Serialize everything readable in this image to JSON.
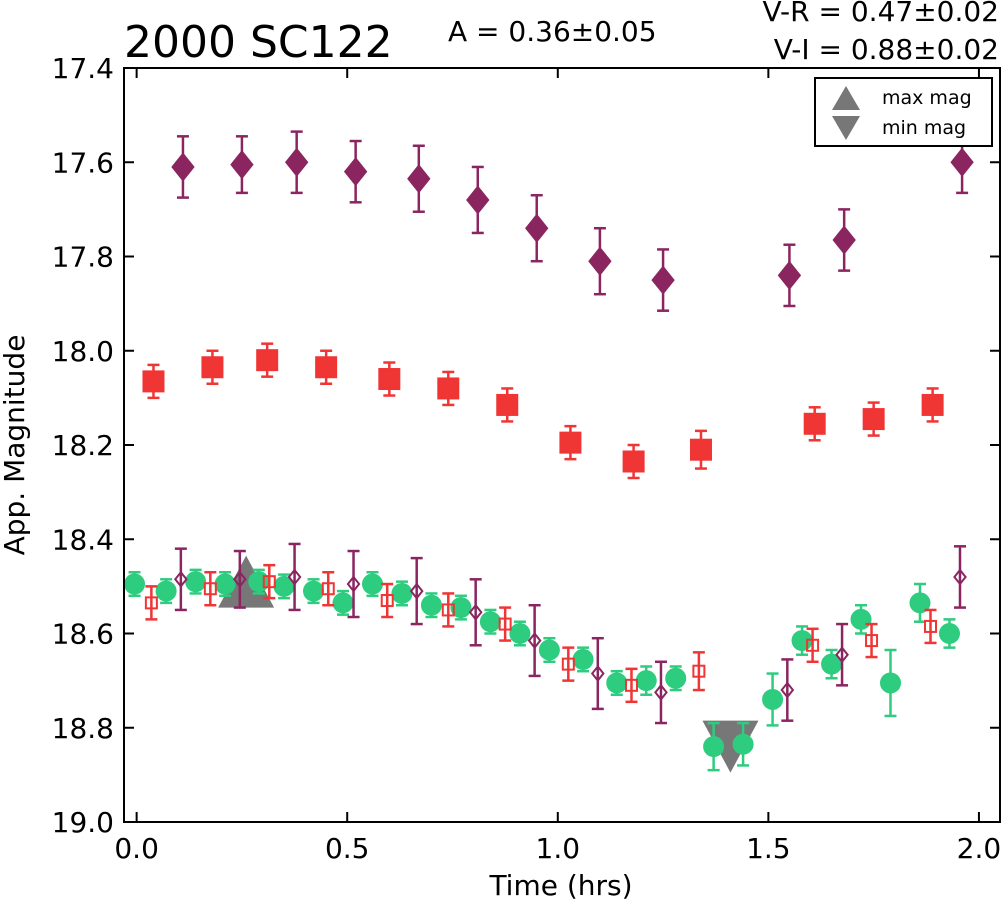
{
  "header": {
    "title": "2000 SC122",
    "amplitude": "A  = 0.36±0.05",
    "v_r": "V-R = 0.47±0.02",
    "v_i": "V-I  = 0.88±0.02"
  },
  "legend": {
    "max_label": "max mag",
    "min_label": "min mag",
    "position": "top-right"
  },
  "chart_data": {
    "type": "scatter",
    "xlabel": "Time (hrs)",
    "ylabel": "App. Magnitude",
    "xlim": [
      -0.03,
      2.05
    ],
    "ylim": [
      19.0,
      17.4
    ],
    "y_inverted": true,
    "grid": false,
    "x_ticks": [
      "0.0",
      "0.5",
      "1.0",
      "1.5",
      "2.0"
    ],
    "y_ticks": [
      "17.4",
      "17.6",
      "17.8",
      "18.0",
      "18.2",
      "18.4",
      "18.6",
      "18.8",
      "19.0"
    ],
    "series": [
      {
        "marker": "diamond",
        "filled": true,
        "color": "#8b2560",
        "points": [
          {
            "x": 0.11,
            "y": 17.61,
            "err": 0.065
          },
          {
            "x": 0.25,
            "y": 17.605,
            "err": 0.06
          },
          {
            "x": 0.38,
            "y": 17.6,
            "err": 0.065
          },
          {
            "x": 0.52,
            "y": 17.62,
            "err": 0.065
          },
          {
            "x": 0.67,
            "y": 17.635,
            "err": 0.07
          },
          {
            "x": 0.81,
            "y": 17.68,
            "err": 0.07
          },
          {
            "x": 0.95,
            "y": 17.74,
            "err": 0.07
          },
          {
            "x": 1.1,
            "y": 17.81,
            "err": 0.07
          },
          {
            "x": 1.25,
            "y": 17.85,
            "err": 0.065
          },
          {
            "x": 1.55,
            "y": 17.84,
            "err": 0.065
          },
          {
            "x": 1.68,
            "y": 17.765,
            "err": 0.065
          },
          {
            "x": 1.96,
            "y": 17.6,
            "err": 0.065
          }
        ]
      },
      {
        "marker": "square",
        "filled": true,
        "color": "#f03535",
        "points": [
          {
            "x": 0.04,
            "y": 18.065,
            "err": 0.035
          },
          {
            "x": 0.18,
            "y": 18.035,
            "err": 0.035
          },
          {
            "x": 0.31,
            "y": 18.02,
            "err": 0.035
          },
          {
            "x": 0.45,
            "y": 18.035,
            "err": 0.035
          },
          {
            "x": 0.6,
            "y": 18.06,
            "err": 0.035
          },
          {
            "x": 0.74,
            "y": 18.08,
            "err": 0.035
          },
          {
            "x": 0.88,
            "y": 18.115,
            "err": 0.035
          },
          {
            "x": 1.03,
            "y": 18.195,
            "err": 0.035
          },
          {
            "x": 1.18,
            "y": 18.235,
            "err": 0.035
          },
          {
            "x": 1.34,
            "y": 18.21,
            "err": 0.04
          },
          {
            "x": 1.61,
            "y": 18.155,
            "err": 0.035
          },
          {
            "x": 1.75,
            "y": 18.145,
            "err": 0.035
          },
          {
            "x": 1.89,
            "y": 18.115,
            "err": 0.035
          }
        ]
      },
      {
        "marker": "circle",
        "filled": true,
        "color": "#2ecc7f",
        "points": [
          {
            "x": -0.005,
            "y": 18.495,
            "err": 0.025
          },
          {
            "x": 0.07,
            "y": 18.51,
            "err": 0.025
          },
          {
            "x": 0.14,
            "y": 18.49,
            "err": 0.025
          },
          {
            "x": 0.21,
            "y": 18.495,
            "err": 0.025
          },
          {
            "x": 0.29,
            "y": 18.49,
            "err": 0.025
          },
          {
            "x": 0.35,
            "y": 18.5,
            "err": 0.025
          },
          {
            "x": 0.42,
            "y": 18.51,
            "err": 0.025
          },
          {
            "x": 0.49,
            "y": 18.535,
            "err": 0.025
          },
          {
            "x": 0.56,
            "y": 18.495,
            "err": 0.025
          },
          {
            "x": 0.63,
            "y": 18.515,
            "err": 0.025
          },
          {
            "x": 0.7,
            "y": 18.54,
            "err": 0.025
          },
          {
            "x": 0.77,
            "y": 18.545,
            "err": 0.025
          },
          {
            "x": 0.84,
            "y": 18.575,
            "err": 0.025
          },
          {
            "x": 0.91,
            "y": 18.6,
            "err": 0.025
          },
          {
            "x": 0.98,
            "y": 18.635,
            "err": 0.025
          },
          {
            "x": 1.06,
            "y": 18.655,
            "err": 0.025
          },
          {
            "x": 1.14,
            "y": 18.705,
            "err": 0.025
          },
          {
            "x": 1.21,
            "y": 18.7,
            "err": 0.03
          },
          {
            "x": 1.28,
            "y": 18.695,
            "err": 0.025
          },
          {
            "x": 1.37,
            "y": 18.84,
            "err": 0.05
          },
          {
            "x": 1.44,
            "y": 18.835,
            "err": 0.045
          },
          {
            "x": 1.51,
            "y": 18.74,
            "err": 0.055
          },
          {
            "x": 1.58,
            "y": 18.615,
            "err": 0.03
          },
          {
            "x": 1.65,
            "y": 18.665,
            "err": 0.03
          },
          {
            "x": 1.72,
            "y": 18.57,
            "err": 0.03
          },
          {
            "x": 1.79,
            "y": 18.705,
            "err": 0.07
          },
          {
            "x": 1.86,
            "y": 18.535,
            "err": 0.04
          },
          {
            "x": 1.93,
            "y": 18.6,
            "err": 0.03
          }
        ]
      },
      {
        "marker": "square",
        "filled": false,
        "color": "#f03535",
        "points": [
          {
            "x": 0.035,
            "y": 18.535,
            "err": 0.035
          },
          {
            "x": 0.175,
            "y": 18.505,
            "err": 0.035
          },
          {
            "x": 0.315,
            "y": 18.49,
            "err": 0.035
          },
          {
            "x": 0.455,
            "y": 18.505,
            "err": 0.035
          },
          {
            "x": 0.595,
            "y": 18.53,
            "err": 0.035
          },
          {
            "x": 0.74,
            "y": 18.55,
            "err": 0.035
          },
          {
            "x": 0.875,
            "y": 18.58,
            "err": 0.035
          },
          {
            "x": 1.025,
            "y": 18.665,
            "err": 0.035
          },
          {
            "x": 1.175,
            "y": 18.71,
            "err": 0.035
          },
          {
            "x": 1.335,
            "y": 18.68,
            "err": 0.04
          },
          {
            "x": 1.605,
            "y": 18.625,
            "err": 0.035
          },
          {
            "x": 1.745,
            "y": 18.615,
            "err": 0.035
          },
          {
            "x": 1.885,
            "y": 18.585,
            "err": 0.035
          }
        ]
      },
      {
        "marker": "diamond",
        "filled": false,
        "color": "#8b2560",
        "points": [
          {
            "x": 0.105,
            "y": 18.485,
            "err": 0.065
          },
          {
            "x": 0.245,
            "y": 18.485,
            "err": 0.06
          },
          {
            "x": 0.375,
            "y": 18.48,
            "err": 0.07
          },
          {
            "x": 0.515,
            "y": 18.495,
            "err": 0.07
          },
          {
            "x": 0.665,
            "y": 18.51,
            "err": 0.07
          },
          {
            "x": 0.805,
            "y": 18.555,
            "err": 0.07
          },
          {
            "x": 0.945,
            "y": 18.615,
            "err": 0.075
          },
          {
            "x": 1.095,
            "y": 18.685,
            "err": 0.075
          },
          {
            "x": 1.245,
            "y": 18.725,
            "err": 0.065
          },
          {
            "x": 1.545,
            "y": 18.72,
            "err": 0.065
          },
          {
            "x": 1.675,
            "y": 18.645,
            "err": 0.065
          },
          {
            "x": 1.955,
            "y": 18.48,
            "err": 0.065
          }
        ]
      }
    ],
    "extrema": [
      {
        "kind": "max",
        "x": 0.26,
        "y": 18.49,
        "color": "#777777"
      },
      {
        "kind": "min",
        "x": 1.41,
        "y": 18.84,
        "color": "#777777"
      }
    ]
  }
}
